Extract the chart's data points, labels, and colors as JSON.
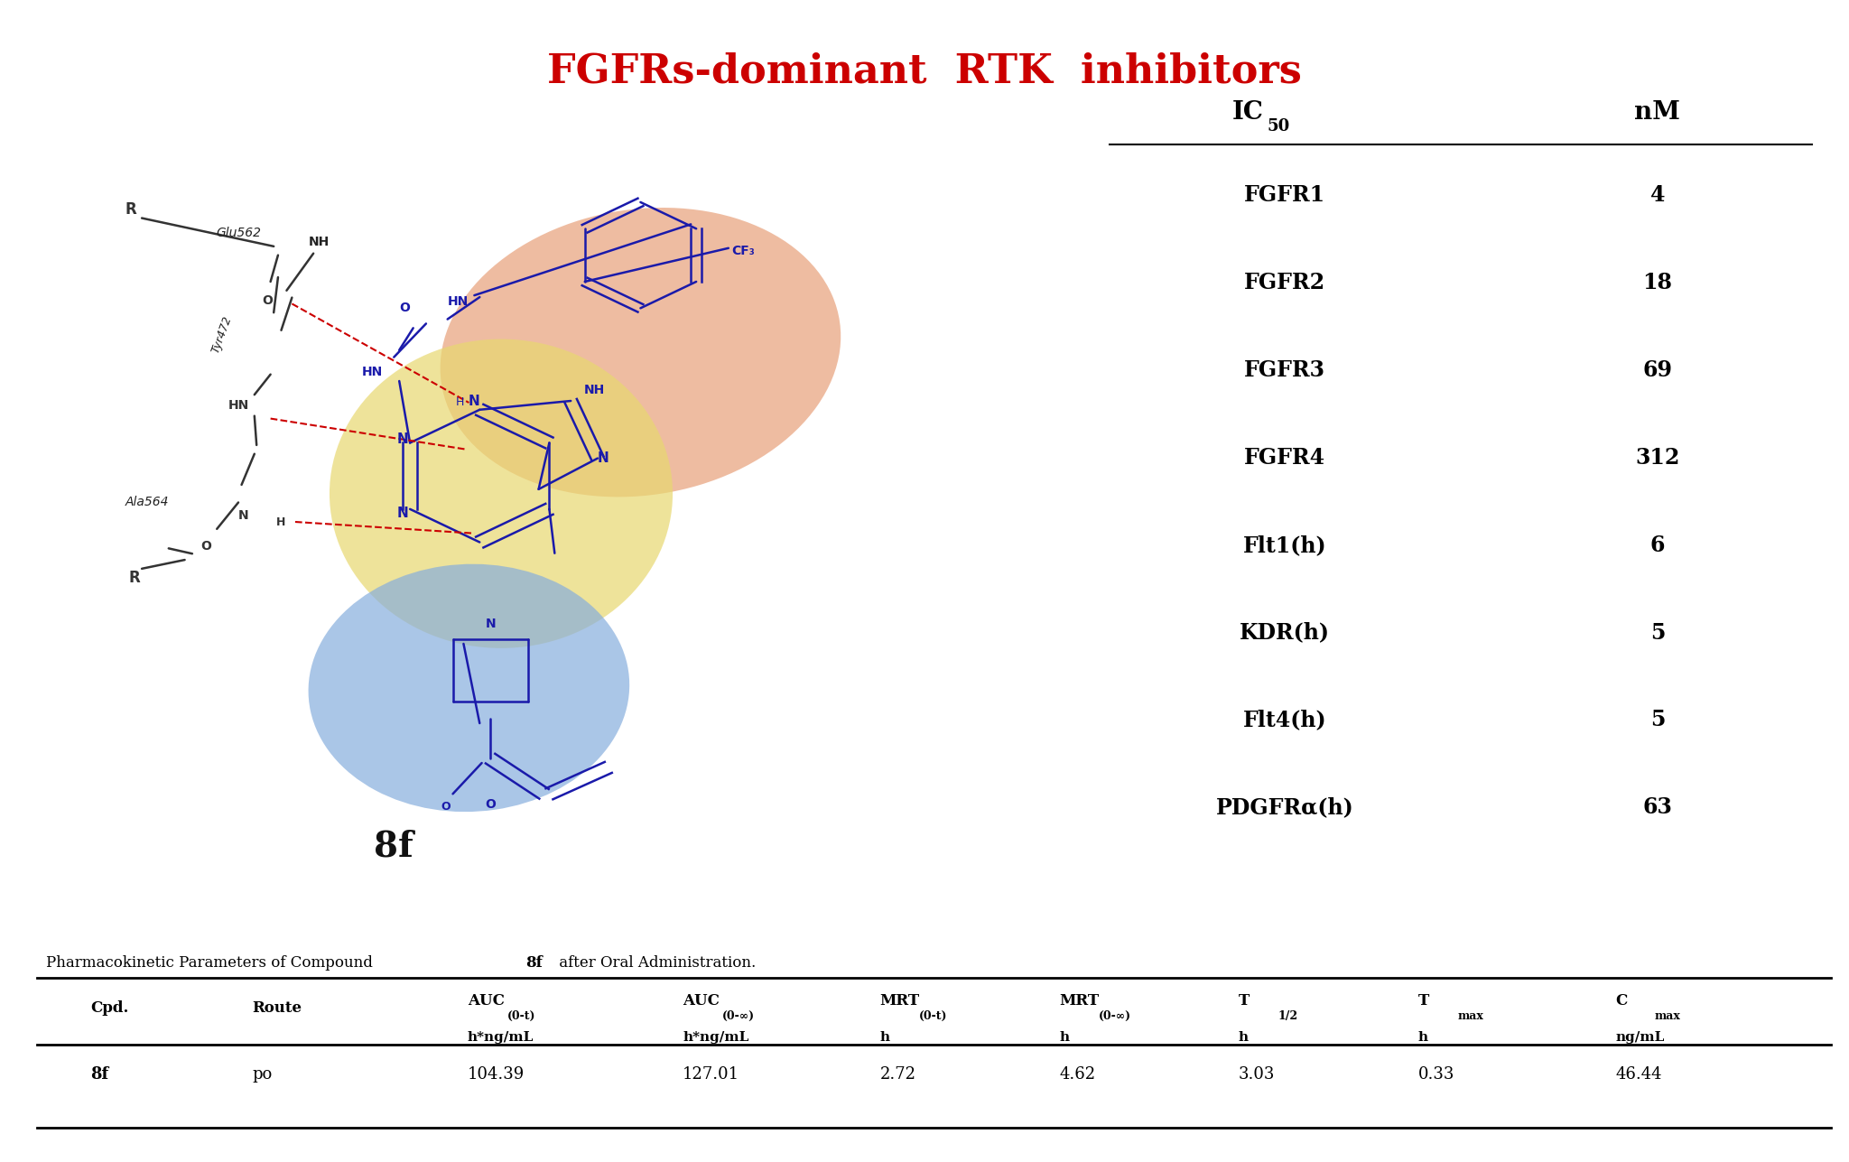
{
  "title": "FGFRs-dominant  RTK  inhibitors",
  "title_color": "#cc0000",
  "title_fontsize": 32,
  "ic50_rows": [
    [
      "FGFR1",
      "4"
    ],
    [
      "FGFR2",
      "18"
    ],
    [
      "FGFR3",
      "69"
    ],
    [
      "FGFR4",
      "312"
    ],
    [
      "Flt1(h)",
      "6"
    ],
    [
      "KDR(h)",
      "5"
    ],
    [
      "Flt4(h)",
      "5"
    ],
    [
      "PDGFRα(h)",
      "63"
    ]
  ],
  "pk_data": [
    "8f",
    "po",
    "104.39",
    "127.01",
    "2.72",
    "4.62",
    "3.03",
    "0.33",
    "46.44"
  ],
  "compound_label": "8f",
  "bg_color": "#ffffff",
  "mol_color": "#1a1aaa",
  "bond_color": "#333333",
  "red_dash_color": "#cc0000",
  "orange_blob_color": "#E8A07A",
  "yellow_blob_color": "#E8D870",
  "blue_blob_color": "#87AEDD",
  "blob_alpha": 0.7
}
